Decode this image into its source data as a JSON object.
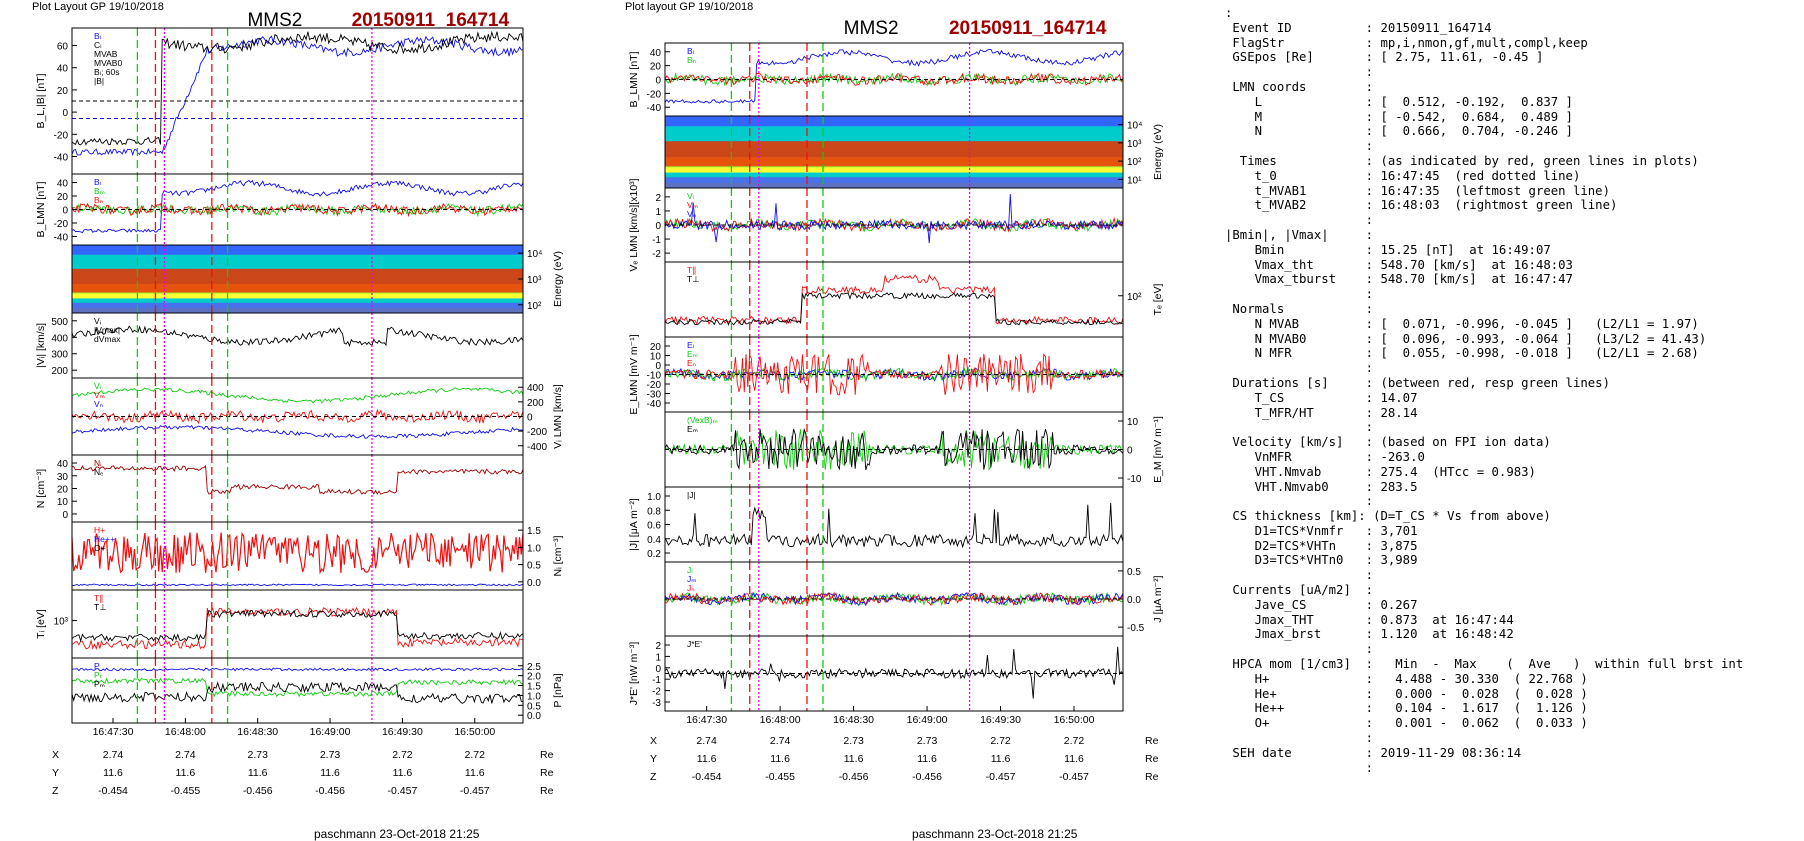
{
  "colors": {
    "blue": "#1010ee",
    "red": "#ee1010",
    "green": "#11cc11",
    "black": "#000000",
    "magenta": "#ee00ee",
    "darkred": "#a00000",
    "teal": "#006060"
  },
  "pages": [
    {
      "header_left": "Plot Layout GP 19/10/2018",
      "spacecraft": "MMS2",
      "event": "20150911_164714",
      "footer": "paschmann 23-Oct-2018 21:25",
      "time_labels": [
        "16:47:30",
        "16:48:00",
        "16:48:30",
        "16:49:00",
        "16:49:30",
        "16:50:00"
      ],
      "ephem": [
        {
          "label": "X",
          "values": [
            "2.74",
            "2.74",
            "2.73",
            "2.73",
            "2.72",
            "2.72"
          ],
          "unit": "Re"
        },
        {
          "label": "Y",
          "values": [
            "11.6",
            "11.6",
            "11.6",
            "11.6",
            "11.6",
            "11.6"
          ],
          "unit": "Re"
        },
        {
          "label": "Z",
          "values": [
            "-0.454",
            "-0.455",
            "-0.456",
            "-0.456",
            "-0.457",
            "-0.457"
          ],
          "unit": "Re"
        }
      ],
      "panels": [
        {
          "ylabel": "B_L,|B| [nT]",
          "ticks": [
            "60",
            "40",
            "20",
            "0",
            "-20",
            "-40"
          ],
          "legend": [
            "Bₗ",
            "Cₗ",
            "MVAB",
            "MVAB0",
            "Bₗ; 60s",
            "|B|"
          ],
          "traces": [
            {
              "color": "blue",
              "shape": "bl"
            },
            {
              "color": "black",
              "shape": "btot"
            }
          ],
          "zero": true,
          "zero2": true
        },
        {
          "ylabel": "B_LMN [nT]",
          "ticks": [
            "40",
            "20",
            "0",
            "-20",
            "-40"
          ],
          "legend": [
            "Bₗ",
            "Bₘ",
            "Bₙ"
          ],
          "traces": [
            {
              "color": "blue",
              "shape": "bl2"
            },
            {
              "color": "green",
              "shape": "noisy0"
            },
            {
              "color": "red",
              "shape": "noisy0"
            }
          ],
          "zero": true
        },
        {
          "ylabel": "Energy (eV)",
          "ticks": [
            "10⁴",
            "10³",
            "10²"
          ],
          "spectro": true,
          "right": true
        },
        {
          "ylabel": "|Vᵢ| [km/s]",
          "ticks": [
            "500",
            "400",
            "300",
            "200"
          ],
          "legend": [
            "Vᵢ",
            "|Vmax|",
            "dVmax"
          ],
          "traces": [
            {
              "color": "black",
              "shape": "speed"
            }
          ]
        },
        {
          "ylabel": "Vᵢ LMN [km/s]",
          "ticks": [
            "400",
            "200",
            "0",
            "-200",
            "-400"
          ],
          "right": true,
          "legend": [
            "Vₗ",
            "Vₘ",
            "Vₙ"
          ],
          "traces": [
            {
              "color": "green",
              "shape": "vl"
            },
            {
              "color": "red",
              "shape": "noisy0"
            },
            {
              "color": "blue",
              "shape": "vn"
            }
          ],
          "zero": true
        },
        {
          "ylabel": "N [cm⁻³]",
          "ticks": [
            "40",
            "30",
            "20",
            "10",
            "0"
          ],
          "legend": [
            "Nᵢ",
            "Nₑ"
          ],
          "traces": [
            {
              "color": "darkred",
              "shape": "dens"
            }
          ]
        },
        {
          "ylabel": "Nᵢ [cm⁻³]",
          "ticks": [
            "1.5",
            "1.0",
            "0.5",
            "0.0"
          ],
          "right": true,
          "legend": [
            "H+",
            "He++",
            "O+"
          ],
          "traces": [
            {
              "color": "red",
              "shape": "hpca"
            },
            {
              "color": "blue",
              "shape": "flat"
            }
          ]
        },
        {
          "ylabel": "Tᵢ [eV]",
          "ticks": [
            "10³"
          ],
          "legend": [
            "T∥",
            "T⊥"
          ],
          "traces": [
            {
              "color": "red",
              "shape": "temp"
            },
            {
              "color": "black",
              "shape": "temp2"
            }
          ]
        },
        {
          "ylabel": "P [nPa]",
          "ticks": [
            "2.5",
            "2.0",
            "1.5",
            "1.0",
            "0.5",
            "0.0"
          ],
          "right": true,
          "legend": [
            "P",
            "Pₜ",
            "Pₘ"
          ],
          "traces": [
            {
              "color": "blue",
              "shape": "ptot"
            },
            {
              "color": "green",
              "shape": "pth"
            },
            {
              "color": "black",
              "shape": "pmag"
            }
          ]
        }
      ]
    },
    {
      "header_left": "Plot layout GP 19/10/2018",
      "spacecraft": "MMS2",
      "event": "20150911_164714",
      "footer": "paschmann 23-Oct-2018 21:25",
      "time_labels": [
        "16:47:30",
        "16:48:00",
        "16:48:30",
        "16:49:00",
        "16:49:30",
        "16:50:00"
      ],
      "ephem": [
        {
          "label": "X",
          "values": [
            "2.74",
            "2.74",
            "2.73",
            "2.73",
            "2.72",
            "2.72"
          ],
          "unit": "Re"
        },
        {
          "label": "Y",
          "values": [
            "11.6",
            "11.6",
            "11.6",
            "11.6",
            "11.6",
            "11.6"
          ],
          "unit": "Re"
        },
        {
          "label": "Z",
          "values": [
            "-0.454",
            "-0.455",
            "-0.456",
            "-0.456",
            "-0.457",
            "-0.457"
          ],
          "unit": "Re"
        }
      ],
      "panels": [
        {
          "ylabel": "B_LMN [nT]",
          "ticks": [
            "40",
            "20",
            "0",
            "-20",
            "-40"
          ],
          "legend": [
            "Bₗ",
            "Bₙ"
          ],
          "traces": [
            {
              "color": "blue",
              "shape": "bl2"
            },
            {
              "color": "green",
              "shape": "noisy0"
            },
            {
              "color": "red",
              "shape": "noisy0"
            }
          ],
          "zero": true
        },
        {
          "ylabel": "Energy (eV)",
          "ticks": [
            "10⁴",
            "10³",
            "10²",
            "10¹"
          ],
          "spectro": true,
          "right": true
        },
        {
          "ylabel": "Vₑ LMN [km/s][x10³]",
          "ticks": [
            "2",
            "1",
            "0",
            "-1",
            "-2"
          ],
          "legend": [
            "Vₗ",
            "Vₘ",
            "Vₙ"
          ],
          "traces": [
            {
              "color": "green",
              "shape": "noisy0"
            },
            {
              "color": "red",
              "shape": "noisy0"
            },
            {
              "color": "blue",
              "shape": "spiky"
            }
          ],
          "zero": true
        },
        {
          "ylabel": "Tₑ [eV]",
          "ticks": [
            "10²"
          ],
          "right": true,
          "legend": [
            "T∥",
            "T⊥"
          ],
          "traces": [
            {
              "color": "red",
              "shape": "te"
            },
            {
              "color": "black",
              "shape": "te2"
            }
          ]
        },
        {
          "ylabel": "E_LMN [mV m⁻¹]",
          "ticks": [
            "20",
            "10",
            "0",
            "-10",
            "-20",
            "-30",
            "-40"
          ],
          "legend": [
            "Eₗ",
            "Eₘ",
            "Eₙ"
          ],
          "traces": [
            {
              "color": "blue",
              "shape": "noisy0"
            },
            {
              "color": "green",
              "shape": "noisy0"
            },
            {
              "color": "red",
              "shape": "burst"
            }
          ],
          "zero": true
        },
        {
          "ylabel": "E_M [mV m⁻¹]",
          "ticks": [
            "10",
            "0",
            "-10"
          ],
          "right": true,
          "legend": [
            "(VexB)ₘ",
            "Eₘ"
          ],
          "traces": [
            {
              "color": "green",
              "shape": "burst"
            },
            {
              "color": "black",
              "shape": "burst"
            }
          ],
          "zero": true
        },
        {
          "ylabel": "|J| [μA m⁻²]",
          "ticks": [
            "1.0",
            "0.8",
            "0.6",
            "0.4",
            "0.2"
          ],
          "legend": [
            "|J|"
          ],
          "traces": [
            {
              "color": "black",
              "shape": "jmag"
            }
          ]
        },
        {
          "ylabel": "J [μA m⁻²]",
          "ticks": [
            "0.5",
            "0.0",
            "-0.5"
          ],
          "right": true,
          "legend": [
            "Jₗ",
            "Jₘ",
            "Jₙ"
          ],
          "traces": [
            {
              "color": "green",
              "shape": "noisy0"
            },
            {
              "color": "blue",
              "shape": "noisy0"
            },
            {
              "color": "red",
              "shape": "noisy0"
            }
          ],
          "zero": true
        },
        {
          "ylabel": "J*E' [nW m⁻³]",
          "ticks": [
            "2",
            "1",
            "0",
            "-1",
            "-2",
            "-3"
          ],
          "legend": [
            "J*E'"
          ],
          "traces": [
            {
              "color": "black",
              "shape": "spiky"
            }
          ],
          "zero": true
        }
      ]
    }
  ],
  "summary": [
    ":",
    " Event ID          : 20150911_164714",
    " FlagStr           : mp,i,nmon,gf,mult,compl,keep",
    " GSEpos [Re]       : [ 2.75, 11.61, -0.45 ]",
    "                   :",
    " LMN coords        :",
    "    L              : [  0.512, -0.192,  0.837 ]",
    "    M              : [ -0.542,  0.684,  0.489 ]",
    "    N              : [  0.666,  0.704, -0.246 ]",
    "                   :",
    "  Times            : (as indicated by red, green lines in plots)",
    "    t_0            : 16:47:45  (red dotted line)",
    "    t_MVAB1        : 16:47:35  (leftmost green line)",
    "    t_MVAB2        : 16:48:03  (rightmost green line)",
    "                   :",
    "|Bmin|, |Vmax|     :",
    "    Bmin           : 15.25 [nT]  at 16:49:07",
    "    Vmax_tht       : 548.70 [km/s]  at 16:48:03",
    "    Vmax_tburst    : 548.70 [km/s]  at 16:47:47",
    "                   :",
    " Normals           :",
    "    N MVAB         : [  0.071, -0.996, -0.045 ]   (L2/L1 = 1.97)",
    "    N MVAB0        : [  0.096, -0.993, -0.064 ]   (L3/L2 = 41.43)",
    "    N MFR          : [  0.055, -0.998, -0.018 ]   (L2/L1 = 2.68)",
    "                   :",
    " Durations [s]     : (between red, resp green lines)",
    "    T_CS           : 14.07",
    "    T_MFR/HT       : 28.14",
    "                   :",
    " Velocity [km/s]   : (based on FPI ion data)",
    "    VnMFR          : -263.0",
    "    VHT.Nmvab      : 275.4  (HTcc = 0.983)",
    "    VHT.Nmvab0     : 283.5",
    "                   :",
    " CS thickness [km]: (D=T_CS * Vs from above)",
    "    D1=TCS*Vnmfr   : 3,701",
    "    D2=TCS*VHTn    : 3,875",
    "    D3=TCS*VHTn0   : 3,989",
    "                   :",
    " Currents [uA/m2]  :",
    "    Jave_CS        : 0.267",
    "    Jmax_THT       : 0.873  at 16:47:44",
    "    Jmax_brst      : 1.120  at 16:48:42",
    "                   :",
    " HPCA mom [1/cm3]  :   Min  -  Max    (  Ave   )  within full brst int",
    "    H+             :   4.488 - 30.330  ( 22.768 )",
    "    He+            :   0.000 -  0.028  (  0.028 )",
    "    He++           :   0.104 -  1.617  (  1.126 )",
    "    O+             :   0.001 -  0.062  (  0.033 )",
    "                   :",
    " SEH date          : 2019-11-29 08:36:14",
    "                   :"
  ]
}
